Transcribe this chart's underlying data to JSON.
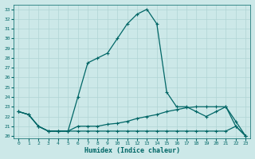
{
  "xlabel": "Humidex (Indice chaleur)",
  "bg_color": "#cce8e8",
  "grid_color": "#b0d4d4",
  "line_color": "#006666",
  "xlim": [
    -0.5,
    23.5
  ],
  "ylim": [
    19.8,
    33.5
  ],
  "yticks": [
    20,
    21,
    22,
    23,
    24,
    25,
    26,
    27,
    28,
    29,
    30,
    31,
    32,
    33
  ],
  "xticks": [
    0,
    1,
    2,
    3,
    4,
    5,
    6,
    7,
    8,
    9,
    10,
    11,
    12,
    13,
    14,
    15,
    16,
    17,
    18,
    19,
    20,
    21,
    22,
    23
  ],
  "line1_x": [
    0,
    1,
    2,
    3,
    4,
    5,
    6,
    7,
    8,
    9,
    10,
    11,
    12,
    13,
    14,
    15,
    16,
    17,
    18,
    19,
    20,
    21,
    22,
    23
  ],
  "line1_y": [
    22.5,
    22.2,
    21.0,
    20.5,
    20.5,
    20.5,
    24.0,
    27.5,
    28.0,
    28.5,
    30.0,
    31.5,
    32.5,
    33.0,
    31.5,
    24.5,
    23.0,
    23.0,
    22.5,
    22.0,
    22.5,
    23.0,
    21.0,
    20.0
  ],
  "line2_x": [
    0,
    1,
    2,
    3,
    4,
    5,
    6,
    7,
    8,
    9,
    10,
    11,
    12,
    13,
    14,
    15,
    16,
    17,
    18,
    19,
    20,
    21,
    22,
    23
  ],
  "line2_y": [
    22.5,
    22.2,
    21.0,
    20.5,
    20.5,
    20.5,
    21.0,
    21.0,
    21.0,
    21.2,
    21.3,
    21.5,
    21.8,
    22.0,
    22.2,
    22.5,
    22.7,
    22.9,
    23.0,
    23.0,
    23.0,
    23.0,
    21.5,
    20.0
  ],
  "line3_x": [
    0,
    1,
    2,
    3,
    4,
    5,
    6,
    7,
    8,
    9,
    10,
    11,
    12,
    13,
    14,
    15,
    16,
    17,
    18,
    19,
    20,
    21,
    22,
    23
  ],
  "line3_y": [
    22.5,
    22.2,
    21.0,
    20.5,
    20.5,
    20.5,
    20.5,
    20.5,
    20.5,
    20.5,
    20.5,
    20.5,
    20.5,
    20.5,
    20.5,
    20.5,
    20.5,
    20.5,
    20.5,
    20.5,
    20.5,
    20.5,
    21.0,
    20.0
  ]
}
